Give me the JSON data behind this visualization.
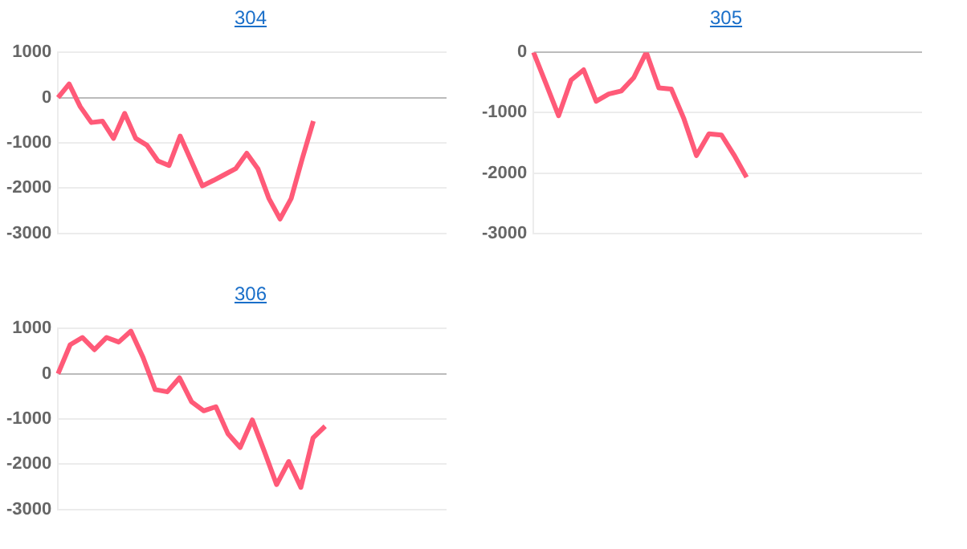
{
  "chart_data": [
    {
      "type": "line",
      "title": "304",
      "categories": [
        null,
        null,
        null,
        null,
        null,
        null,
        null,
        null,
        null,
        null,
        null,
        null,
        null,
        null,
        null,
        null,
        null,
        null,
        null,
        null,
        null,
        null,
        null,
        null,
        null,
        null,
        null,
        null,
        null,
        null,
        null,
        null,
        null,
        null,
        null,
        null
      ],
      "series": [
        {
          "color": "#ff5a78",
          "values": [
            0,
            300,
            -200,
            -550,
            -520,
            -900,
            -350,
            -900,
            -1050,
            -1400,
            -1500,
            -850,
            -1400,
            -1950,
            -1830,
            -1700,
            -1570,
            -1230,
            -1570,
            -2230,
            -2680,
            -2230,
            -1350,
            -520,
            null,
            null,
            null,
            null,
            null,
            null,
            null,
            null,
            null,
            null,
            null,
            null
          ]
        }
      ],
      "ylim": [
        -3000,
        1000
      ],
      "yticks": [
        -3000,
        -2000,
        -1000,
        0,
        1000
      ],
      "grid": "y",
      "tick_labels": "y",
      "marker": "none"
    },
    {
      "type": "line",
      "title": "305",
      "categories": [
        null,
        null,
        null,
        null,
        null,
        null,
        null,
        null,
        null,
        null,
        null,
        null,
        null,
        null,
        null,
        null,
        null,
        null,
        null,
        null,
        null,
        null,
        null,
        null,
        null,
        null,
        null,
        null,
        null,
        null,
        null,
        null
      ],
      "series": [
        {
          "color": "#ff5a78",
          "values": [
            0,
            -520,
            -1050,
            -460,
            -290,
            -810,
            -690,
            -640,
            -420,
            0,
            -590,
            -610,
            -1100,
            -1710,
            -1350,
            -1370,
            -1700,
            -2070,
            null,
            null,
            null,
            null,
            null,
            null,
            null,
            null,
            null,
            null,
            null,
            null,
            null,
            null
          ]
        }
      ],
      "ylim": [
        -3000,
        0
      ],
      "yticks": [
        -3000,
        -2000,
        -1000,
        0
      ],
      "grid": "y",
      "tick_labels": "y",
      "marker": "none"
    },
    {
      "type": "line",
      "title": "306",
      "categories": [
        null,
        null,
        null,
        null,
        null,
        null,
        null,
        null,
        null,
        null,
        null,
        null,
        null,
        null,
        null,
        null,
        null,
        null,
        null,
        null,
        null,
        null,
        null,
        null,
        null,
        null,
        null,
        null,
        null,
        null,
        null,
        null,
        null
      ],
      "series": [
        {
          "color": "#ff5a78",
          "values": [
            0,
            640,
            800,
            530,
            800,
            700,
            940,
            360,
            -350,
            -400,
            -90,
            -620,
            -820,
            -730,
            -1330,
            -1630,
            -1020,
            -1720,
            -2450,
            -1940,
            -2510,
            -1420,
            -1160,
            null,
            null,
            null,
            null,
            null,
            null,
            null,
            null,
            null,
            null
          ]
        }
      ],
      "ylim": [
        -3000,
        1000
      ],
      "yticks": [
        -3000,
        -2000,
        -1000,
        0,
        1000
      ],
      "grid": "y",
      "tick_labels": "y",
      "marker": "none"
    }
  ]
}
